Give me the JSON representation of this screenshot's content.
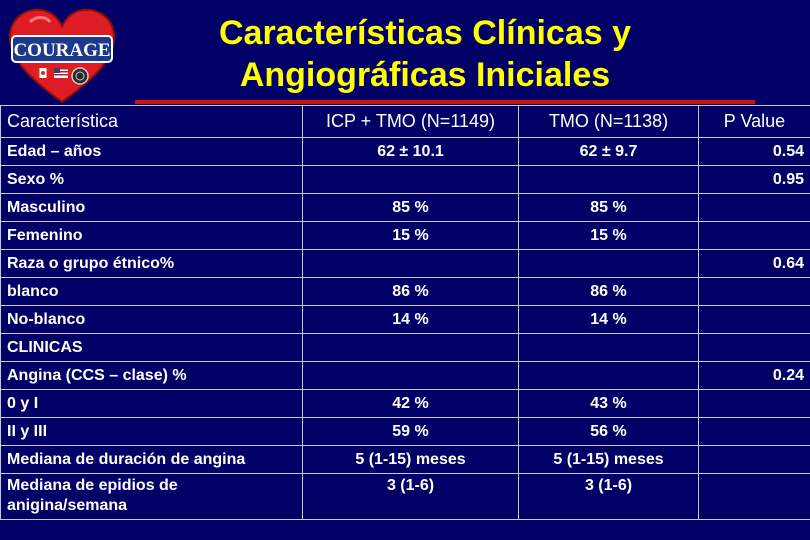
{
  "logo": {
    "text": "COURAGE"
  },
  "title": {
    "line1": "Características Clínicas y",
    "line2": "Angiográficas Iniciales"
  },
  "table": {
    "headers": [
      "Característica",
      "ICP + TMO (N=1149)",
      "TMO (N=1138)",
      "P Value"
    ],
    "rows": [
      {
        "label": "Edad – años",
        "c1": "62 ± 10.1",
        "c2": "62 ± 9.7",
        "p": "0.54",
        "sub": false
      },
      {
        "label": "Sexo %",
        "c1": "",
        "c2": "",
        "p": "0.95",
        "sub": false
      },
      {
        "label": "Masculino",
        "c1": "85 %",
        "c2": "85 %",
        "p": "",
        "sub": true
      },
      {
        "label": "Femenino",
        "c1": "15 %",
        "c2": "15 %",
        "p": "",
        "sub": true
      },
      {
        "label": "Raza o grupo étnico%",
        "c1": "",
        "c2": "",
        "p": "0.64",
        "sub": false
      },
      {
        "label": "blanco",
        "c1": "86 %",
        "c2": "86 %",
        "p": "",
        "sub": true
      },
      {
        "label": "No-blanco",
        "c1": "14 %",
        "c2": "14 %",
        "p": "",
        "sub": true
      },
      {
        "label": "CLINICAS",
        "c1": "",
        "c2": "",
        "p": "",
        "sub": false
      },
      {
        "label": "Angina (CCS – clase) %",
        "c1": "",
        "c2": "",
        "p": "0.24",
        "sub": false
      },
      {
        "label": "0 y I",
        "c1": "42 %",
        "c2": "43 %",
        "p": "",
        "sub": true
      },
      {
        "label": "II y III",
        "c1": "59 %",
        "c2": "56 %",
        "p": "",
        "sub": true
      },
      {
        "label": "Mediana de duración de angina",
        "c1": "5 (1-15) meses",
        "c2": "5 (1-15) meses",
        "p": "",
        "sub": false
      },
      {
        "label": "Mediana de epidios de anigina/semana",
        "c1": "3 (1-6)",
        "c2": "3 (1-6)",
        "p": "",
        "sub": false,
        "wrap": true
      }
    ]
  },
  "colors": {
    "background": "#000066",
    "title": "#ffff00",
    "heart": "#dd1c24",
    "logo_banner": "#1c3a8c"
  }
}
